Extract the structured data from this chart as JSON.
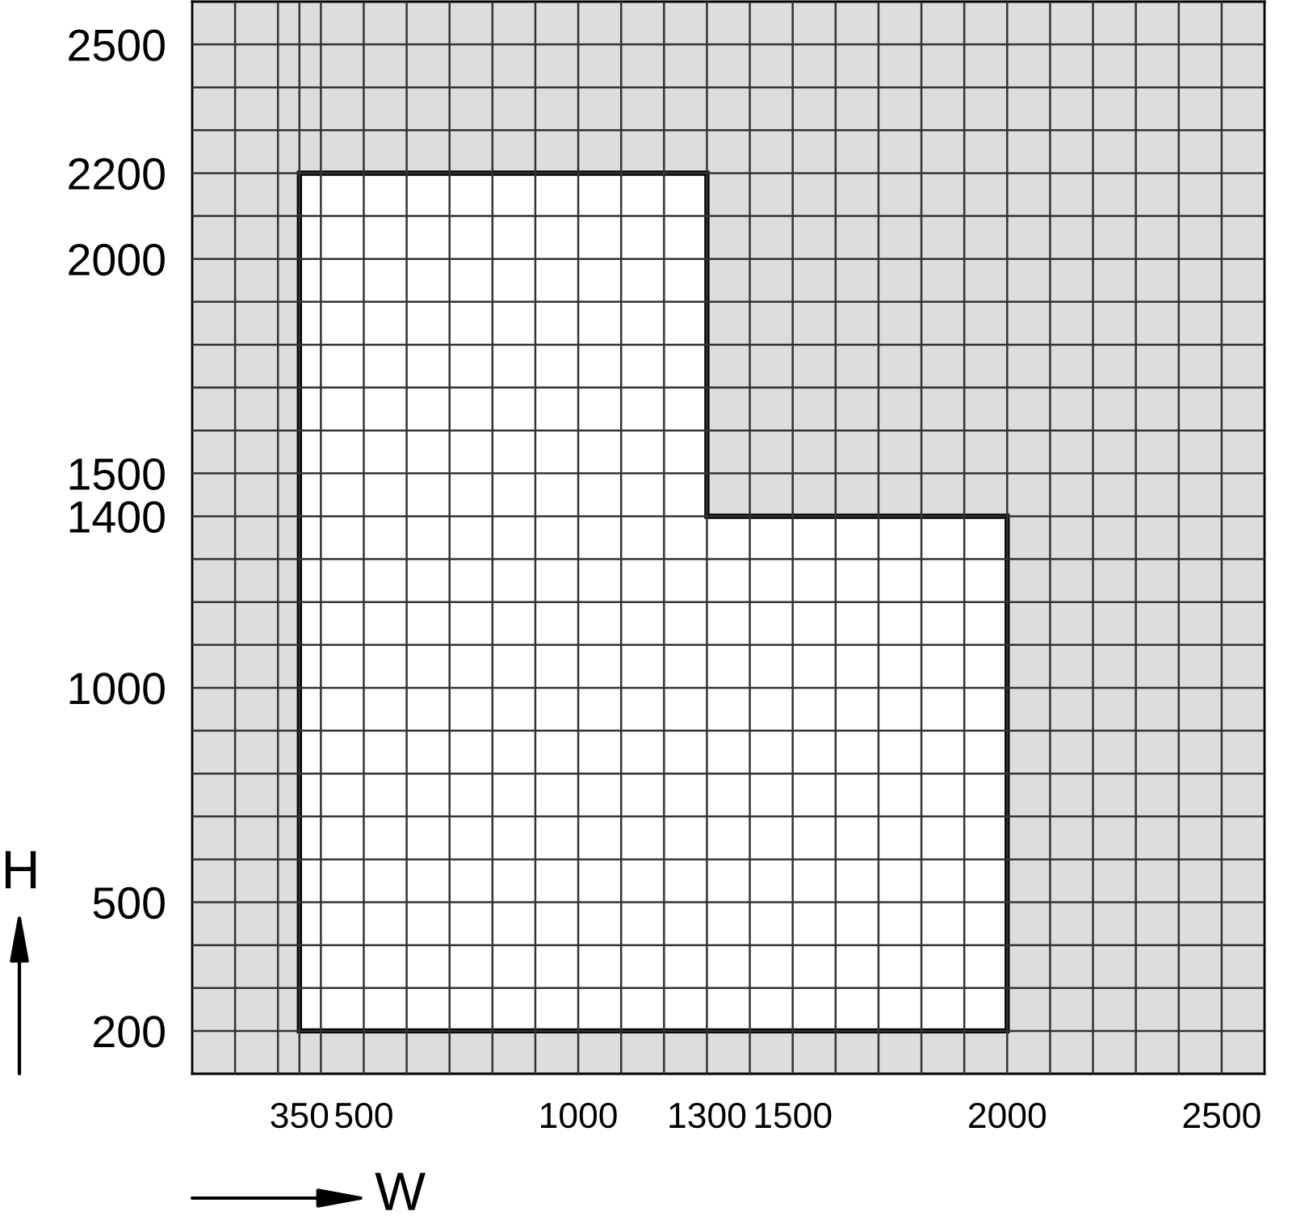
{
  "chart_data": {
    "type": "area",
    "xlabel": "W",
    "ylabel": "H",
    "x": [
      350,
      350,
      1300,
      1300,
      2000,
      2000
    ],
    "series": [
      {
        "color": "#ffffff",
        "values": [
          200,
          2200,
          2200,
          1400,
          1400,
          200
        ]
      }
    ],
    "xlim": [
      100,
      2600
    ],
    "ylim": [
      100,
      2600
    ],
    "xticks": [
      {
        "value": 200,
        "label": null
      },
      {
        "value": 300,
        "label": null
      },
      350,
      {
        "value": 400,
        "label": null
      },
      500,
      {
        "value": 600,
        "label": null
      },
      {
        "value": 700,
        "label": null
      },
      {
        "value": 800,
        "label": null
      },
      {
        "value": 900,
        "label": null
      },
      1000,
      {
        "value": 1100,
        "label": null
      },
      {
        "value": 1200,
        "label": null
      },
      1300,
      {
        "value": 1400,
        "label": null
      },
      1500,
      {
        "value": 1600,
        "label": null
      },
      {
        "value": 1700,
        "label": null
      },
      {
        "value": 1800,
        "label": null
      },
      {
        "value": 1900,
        "label": null
      },
      2000,
      {
        "value": 2100,
        "label": null
      },
      {
        "value": 2200,
        "label": null
      },
      {
        "value": 2300,
        "label": null
      },
      {
        "value": 2400,
        "label": null
      },
      2500
    ],
    "yticks": [
      200,
      {
        "value": 300,
        "label": null
      },
      {
        "value": 400,
        "label": null
      },
      500,
      {
        "value": 600,
        "label": null
      },
      {
        "value": 700,
        "label": null
      },
      {
        "value": 800,
        "label": null
      },
      {
        "value": 900,
        "label": null
      },
      1000,
      {
        "value": 1100,
        "label": null
      },
      {
        "value": 1200,
        "label": null
      },
      {
        "value": 1300,
        "label": null
      },
      1400,
      1500,
      {
        "value": 1600,
        "label": null
      },
      {
        "value": 1700,
        "label": null
      },
      {
        "value": 1800,
        "label": null
      },
      {
        "value": 1900,
        "label": null
      },
      2000,
      {
        "value": 2100,
        "label": null
      },
      2200,
      {
        "value": 2300,
        "label": null
      },
      {
        "value": 2400,
        "label": null
      },
      2500
    ],
    "grid": true
  }
}
